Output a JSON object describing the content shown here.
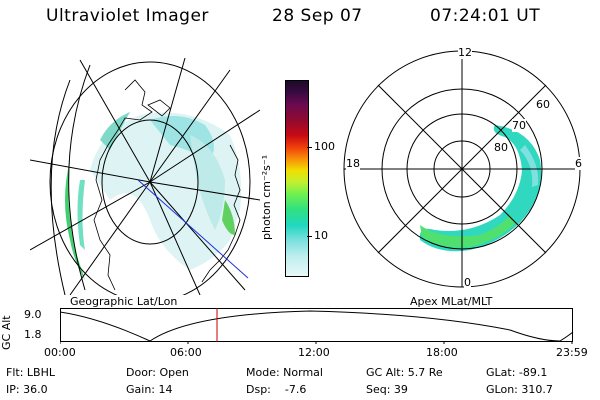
{
  "header": {
    "instrument": "Ultraviolet Imager",
    "date": "28 Sep 07",
    "time": "07:24:01 UT"
  },
  "geo_panel": {
    "caption": "Geographic Lat/Lon"
  },
  "apex_panel": {
    "caption": "Apex MLat/MLT",
    "mlt_labels": {
      "top": "12",
      "left": "18",
      "right": "6",
      "bottom": "0"
    },
    "lat_labels": [
      "60",
      "70",
      "80"
    ]
  },
  "colorbar": {
    "unit_label": "photon cm⁻²s⁻¹",
    "ticks": [
      "100",
      "10"
    ],
    "colors": [
      "#1a0a28",
      "#3a0a40",
      "#6a0a50",
      "#900a30",
      "#c80a14",
      "#f0400a",
      "#f8900a",
      "#f0e000",
      "#c0f030",
      "#70f050",
      "#30e080",
      "#20d8c0",
      "#7fe0e0",
      "#bfeeee",
      "#e8f8f8"
    ]
  },
  "orbit_plot": {
    "y_axis_label": "GC Alt",
    "y_ticks": [
      "9.0",
      "1.8"
    ],
    "x_ticks": [
      "00:00",
      "06:00",
      "12:00",
      "18:00",
      "23:59"
    ],
    "current_marker_color": "#c00000"
  },
  "info": {
    "col1": [
      "Flt: LBHL",
      "IP: 36.0"
    ],
    "col2": [
      "Door: Open",
      "Gain: 14"
    ],
    "col3": [
      "Mode: Normal",
      "Dsp:    -7.6"
    ],
    "col4": [
      "GC Alt: 5.7 Re",
      "Seq: 39"
    ],
    "col5": [
      "GLat: -89.1",
      "GLon: 310.7"
    ]
  }
}
